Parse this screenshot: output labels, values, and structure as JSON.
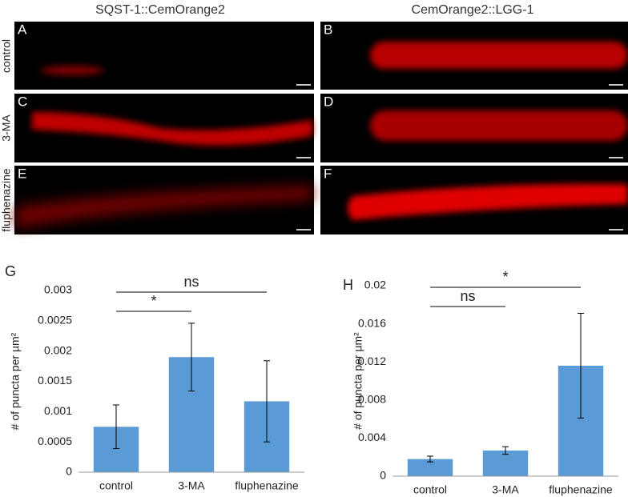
{
  "figure": {
    "column_titles": [
      "SQST-1::CemOrange2",
      "CemOrange2::LGG-1"
    ],
    "row_labels": [
      "control",
      "3-MA",
      "fluphenazine"
    ],
    "panel_labels": [
      "A",
      "B",
      "C",
      "D",
      "E",
      "F"
    ]
  },
  "chart_data": [
    {
      "type": "bar",
      "panel_label": "G",
      "y_label": "# of puncta per µm²",
      "categories": [
        "control",
        "3-MA",
        "fluphenazine"
      ],
      "values": [
        0.00075,
        0.0019,
        0.00117
      ],
      "errors": [
        0.00036,
        0.00056,
        0.00067
      ],
      "color": "#5b9bd5",
      "ylim": [
        0,
        0.003
      ],
      "yticks": [
        0,
        0.0005,
        0.001,
        0.0015,
        0.002,
        0.0025,
        0.003
      ],
      "significance": [
        {
          "from": "control",
          "to": "3-MA",
          "label": "*"
        },
        {
          "from": "control",
          "to": "fluphenazine",
          "label": "ns"
        }
      ]
    },
    {
      "type": "bar",
      "panel_label": "H",
      "y_label": "# of puncta per µm²",
      "categories": [
        "control",
        "3-MA",
        "fluphenazine"
      ],
      "values": [
        0.0018,
        0.0027,
        0.0116
      ],
      "errors": [
        0.0003,
        0.0004,
        0.0055
      ],
      "color": "#5b9bd5",
      "ylim": [
        0,
        0.02
      ],
      "yticks": [
        0,
        0.004,
        0.008,
        0.012,
        0.016,
        0.02
      ],
      "significance": [
        {
          "from": "control",
          "to": "3-MA",
          "label": "ns"
        },
        {
          "from": "control",
          "to": "fluphenazine",
          "label": "*"
        }
      ]
    }
  ]
}
